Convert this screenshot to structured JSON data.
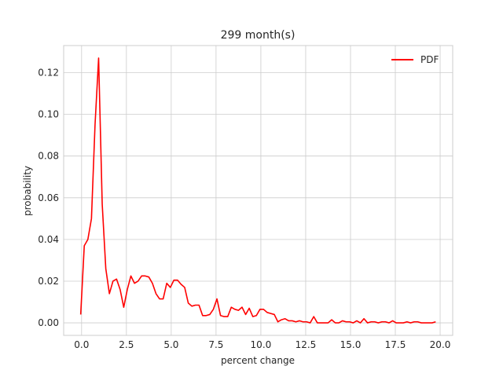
{
  "chart_data": {
    "type": "line",
    "title": "299 month(s)",
    "xlabel": "percent change",
    "ylabel": "probability",
    "xlim": [
      -1.0,
      20.7
    ],
    "ylim": [
      -0.006,
      0.133
    ],
    "xticks": [
      0.0,
      2.5,
      5.0,
      7.5,
      10.0,
      12.5,
      15.0,
      17.5,
      20.0
    ],
    "xtick_labels": [
      "0.0",
      "2.5",
      "5.0",
      "7.5",
      "10.0",
      "12.5",
      "15.0",
      "17.5",
      "20.0"
    ],
    "yticks": [
      0.0,
      0.02,
      0.04,
      0.06,
      0.08,
      0.1,
      0.12
    ],
    "ytick_labels": [
      "0.00",
      "0.02",
      "0.04",
      "0.06",
      "0.08",
      "0.10",
      "0.12"
    ],
    "grid": true,
    "legend_position": "top-right",
    "series": [
      {
        "name": "PDF",
        "color": "#ff0000",
        "x": [
          -0.05,
          0.15,
          0.35,
          0.55,
          0.75,
          0.95,
          1.15,
          1.35,
          1.55,
          1.75,
          1.95,
          2.15,
          2.35,
          2.55,
          2.75,
          2.95,
          3.15,
          3.35,
          3.55,
          3.75,
          3.95,
          4.15,
          4.35,
          4.55,
          4.75,
          4.95,
          5.15,
          5.35,
          5.55,
          5.75,
          5.95,
          6.15,
          6.35,
          6.55,
          6.75,
          6.95,
          7.15,
          7.35,
          7.55,
          7.75,
          7.95,
          8.15,
          8.35,
          8.55,
          8.75,
          8.95,
          9.15,
          9.35,
          9.55,
          9.75,
          9.95,
          10.15,
          10.35,
          10.55,
          10.75,
          10.95,
          11.15,
          11.35,
          11.55,
          11.75,
          11.95,
          12.15,
          12.35,
          12.55,
          12.75,
          12.95,
          13.15,
          13.35,
          13.55,
          13.75,
          13.95,
          14.15,
          14.35,
          14.55,
          14.75,
          14.95,
          15.15,
          15.35,
          15.55,
          15.75,
          15.95,
          16.15,
          16.35,
          16.55,
          16.75,
          16.95,
          17.15,
          17.35,
          17.55,
          17.75,
          17.95,
          18.15,
          18.35,
          18.55,
          18.75,
          18.95,
          19.15,
          19.35,
          19.55,
          19.75
        ],
        "y": [
          0.004,
          0.037,
          0.04,
          0.05,
          0.095,
          0.127,
          0.057,
          0.026,
          0.014,
          0.02,
          0.021,
          0.016,
          0.0075,
          0.016,
          0.0225,
          0.019,
          0.02,
          0.0225,
          0.0225,
          0.022,
          0.019,
          0.014,
          0.0115,
          0.0115,
          0.019,
          0.017,
          0.0205,
          0.0205,
          0.0185,
          0.017,
          0.0095,
          0.008,
          0.0085,
          0.0085,
          0.0035,
          0.0035,
          0.004,
          0.0065,
          0.0115,
          0.0035,
          0.003,
          0.003,
          0.0075,
          0.0065,
          0.006,
          0.0075,
          0.004,
          0.007,
          0.003,
          0.0035,
          0.0065,
          0.0065,
          0.005,
          0.0045,
          0.004,
          0.0005,
          0.0015,
          0.002,
          0.001,
          0.001,
          0.0005,
          0.001,
          0.0005,
          0.0005,
          0.0,
          0.003,
          0.0,
          0.0,
          0.0,
          0.0,
          0.0015,
          0.0,
          0.0,
          0.001,
          0.0005,
          0.0005,
          0.0,
          0.001,
          0.0,
          0.002,
          0.0,
          0.0005,
          0.0005,
          0.0,
          0.0005,
          0.0005,
          0.0,
          0.001,
          0.0,
          0.0,
          0.0,
          0.0005,
          0.0,
          0.0005,
          0.0005,
          0.0,
          0.0,
          0.0,
          0.0,
          0.0005
        ]
      }
    ]
  }
}
